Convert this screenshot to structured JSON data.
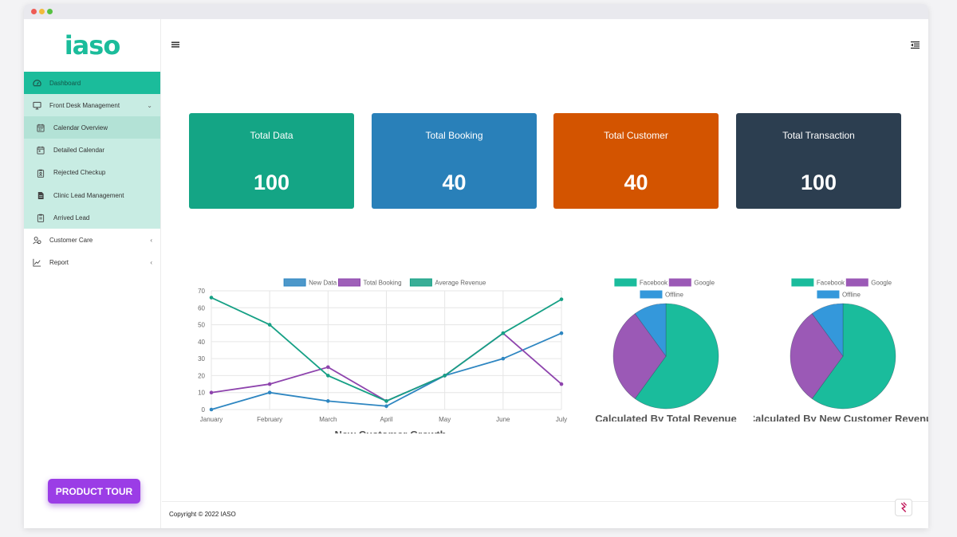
{
  "brand": {
    "logo_text": "iaso"
  },
  "sidebar": {
    "items": [
      {
        "label": "Dashboard",
        "icon": "dashboard-icon"
      },
      {
        "label": "Front Desk Management",
        "icon": "monitor-icon"
      },
      {
        "label": "Customer Care",
        "icon": "users-icon"
      },
      {
        "label": "Report",
        "icon": "chart-line-icon"
      }
    ],
    "submenu": [
      {
        "label": "Calendar Overview",
        "icon": "calendar-icon"
      },
      {
        "label": "Detailed Calendar",
        "icon": "calendar-icon"
      },
      {
        "label": "Rejected Checkup",
        "icon": "clipboard-icon"
      },
      {
        "label": "Clinic Lead Management",
        "icon": "document-icon"
      },
      {
        "label": "Arrived Lead",
        "icon": "clipboard-icon"
      }
    ]
  },
  "product_tour_label": "PRODUCT TOUR",
  "cards": [
    {
      "title": "Total Data",
      "value": "100",
      "color": "#14a585"
    },
    {
      "title": "Total Booking",
      "value": "40",
      "color": "#2980b9"
    },
    {
      "title": "Total Customer",
      "value": "40",
      "color": "#d35400"
    },
    {
      "title": "Total Transaction",
      "value": "100",
      "color": "#2c3e50"
    }
  ],
  "chart_data": [
    {
      "type": "line",
      "title": "New Customer Growth",
      "categories": [
        "January",
        "February",
        "March",
        "April",
        "May",
        "June",
        "July"
      ],
      "series": [
        {
          "name": "New Data",
          "color": "#2e86c1",
          "values": [
            0,
            10,
            5,
            2,
            20,
            30,
            45
          ]
        },
        {
          "name": "Total Booking",
          "color": "#8e44ad",
          "values": [
            10,
            15,
            25,
            5,
            20,
            45,
            15
          ]
        },
        {
          "name": "Average Revenue",
          "color": "#16a085",
          "values": [
            66,
            50,
            20,
            5,
            20,
            45,
            65
          ]
        }
      ],
      "ylim": [
        0,
        70
      ],
      "yticks": [
        0,
        10,
        20,
        30,
        40,
        50,
        60,
        70
      ],
      "grid": true,
      "legend": "top"
    },
    {
      "type": "pie",
      "title": "Calculated By Total Revenue",
      "labels": [
        "Facebook",
        "Google",
        "Offline"
      ],
      "values": [
        60,
        30,
        10
      ],
      "colors": [
        "#1abc9c",
        "#9b59b6",
        "#3498db"
      ],
      "legend": "top"
    },
    {
      "type": "pie",
      "title": "Calculated By New Customer Revenue",
      "labels": [
        "Facebook",
        "Google",
        "Offline"
      ],
      "values": [
        60,
        30,
        10
      ],
      "colors": [
        "#1abc9c",
        "#9b59b6",
        "#3498db"
      ],
      "legend": "top"
    }
  ],
  "footer": {
    "copyright": "Copyright © 2022 IASO"
  }
}
